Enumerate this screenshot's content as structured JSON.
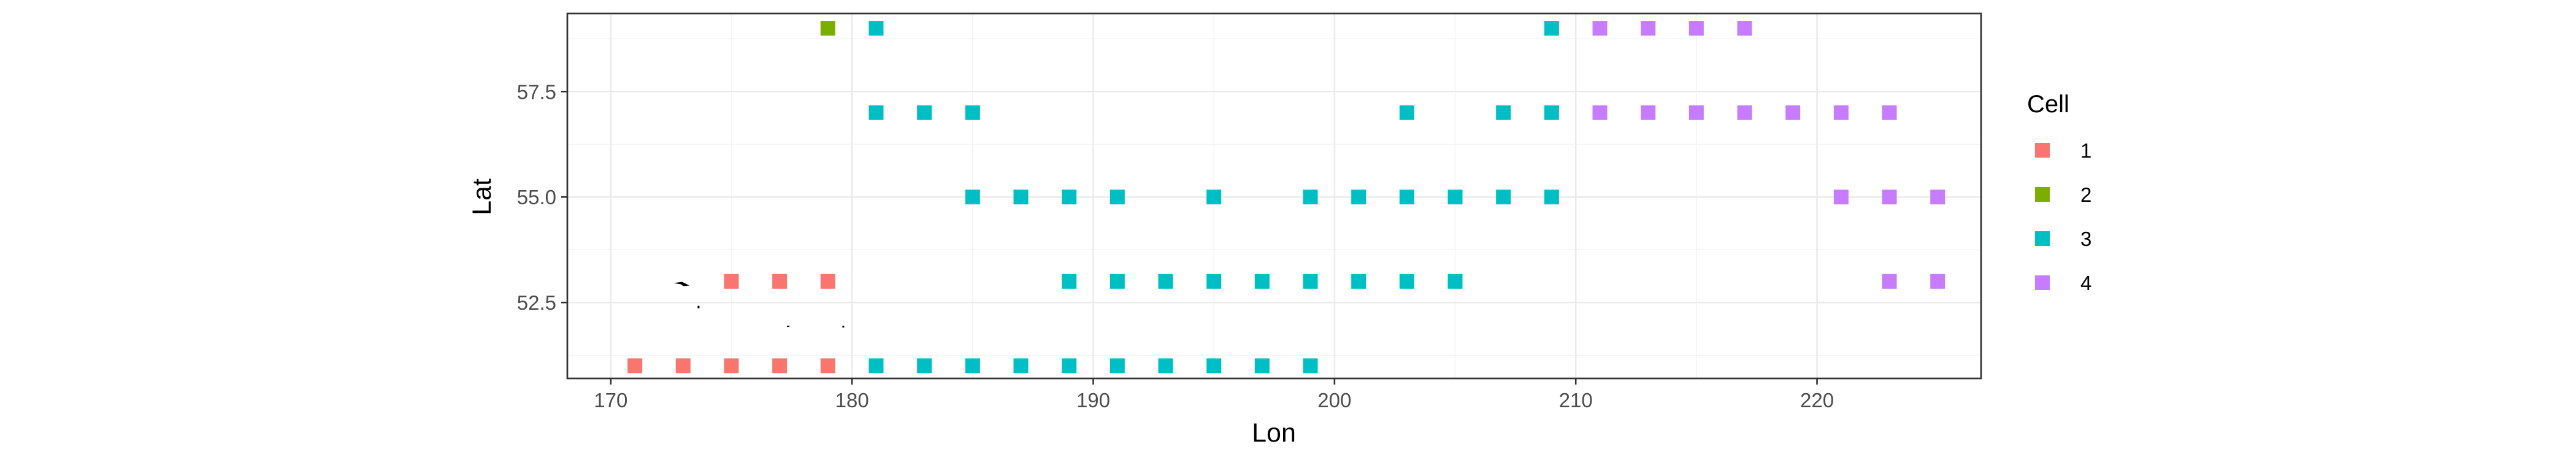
{
  "chart_data": {
    "type": "scatter",
    "title": "",
    "xlabel": "Lon",
    "ylabel": "Lat",
    "xlim": [
      168.2,
      226.8
    ],
    "ylim": [
      50.7,
      59.35
    ],
    "x_ticks": [
      170,
      180,
      190,
      200,
      210,
      220
    ],
    "x_tick_labels": [
      "170",
      "180",
      "190",
      "200",
      "210",
      "220"
    ],
    "y_ticks": [
      52.5,
      55.0,
      57.5
    ],
    "y_tick_labels": [
      "52.5",
      "55.0",
      "57.5"
    ],
    "grid": true,
    "legend_title": "Cell",
    "legend_position": "right",
    "series": [
      {
        "name": "1",
        "color": "#F8766D",
        "points": [
          [
            171,
            51
          ],
          [
            173,
            51
          ],
          [
            175,
            51
          ],
          [
            177,
            51
          ],
          [
            179,
            51
          ],
          [
            175,
            53
          ],
          [
            177,
            53
          ],
          [
            179,
            53
          ]
        ]
      },
      {
        "name": "2",
        "color": "#7CAE00",
        "points": [
          [
            179,
            59
          ]
        ]
      },
      {
        "name": "3",
        "color": "#00BFC4",
        "points": [
          [
            181,
            59
          ],
          [
            209,
            59
          ],
          [
            181,
            57
          ],
          [
            183,
            57
          ],
          [
            185,
            57
          ],
          [
            203,
            57
          ],
          [
            207,
            57
          ],
          [
            209,
            57
          ],
          [
            185,
            55
          ],
          [
            187,
            55
          ],
          [
            189,
            55
          ],
          [
            191,
            55
          ],
          [
            195,
            55
          ],
          [
            199,
            55
          ],
          [
            201,
            55
          ],
          [
            203,
            55
          ],
          [
            205,
            55
          ],
          [
            207,
            55
          ],
          [
            209,
            55
          ],
          [
            189,
            53
          ],
          [
            191,
            53
          ],
          [
            193,
            53
          ],
          [
            195,
            53
          ],
          [
            197,
            53
          ],
          [
            199,
            53
          ],
          [
            201,
            53
          ],
          [
            203,
            53
          ],
          [
            205,
            53
          ],
          [
            181,
            51
          ],
          [
            183,
            51
          ],
          [
            185,
            51
          ],
          [
            187,
            51
          ],
          [
            189,
            51
          ],
          [
            191,
            51
          ],
          [
            193,
            51
          ],
          [
            195,
            51
          ],
          [
            197,
            51
          ],
          [
            199,
            51
          ]
        ]
      },
      {
        "name": "4",
        "color": "#C77CFF",
        "points": [
          [
            211,
            59
          ],
          [
            213,
            59
          ],
          [
            215,
            59
          ],
          [
            217,
            59
          ],
          [
            211,
            57
          ],
          [
            213,
            57
          ],
          [
            215,
            57
          ],
          [
            217,
            57
          ],
          [
            219,
            57
          ],
          [
            221,
            57
          ],
          [
            223,
            57
          ],
          [
            221,
            55
          ],
          [
            223,
            55
          ],
          [
            225,
            55
          ],
          [
            223,
            53
          ],
          [
            225,
            53
          ]
        ]
      }
    ]
  }
}
